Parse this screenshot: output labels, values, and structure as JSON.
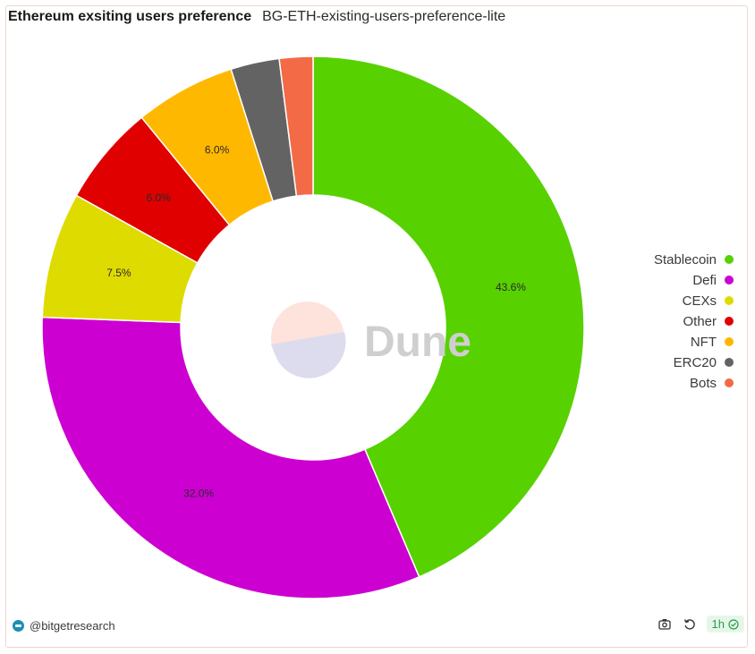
{
  "header": {
    "title": "Ethereum exsiting users preference",
    "subtitle": "BG-ETH-existing-users-preference-lite"
  },
  "chart_data": {
    "type": "pie",
    "donut": true,
    "title": "Ethereum exsiting users preference",
    "legend_position": "right",
    "series": [
      {
        "name": "Stablecoin",
        "value": 43.6,
        "label": "43.6%",
        "color": "#58d100"
      },
      {
        "name": "Defi",
        "value": 32.0,
        "label": "32.0%",
        "color": "#cc00d1"
      },
      {
        "name": "CEXs",
        "value": 7.5,
        "label": "7.5%",
        "color": "#dedb00"
      },
      {
        "name": "Other",
        "value": 6.0,
        "label": "6.0%",
        "color": "#e00000"
      },
      {
        "name": "NFT",
        "value": 6.0,
        "label": "6.0%",
        "color": "#ffb800"
      },
      {
        "name": "ERC20",
        "value": 2.9,
        "label": "",
        "color": "#636363"
      },
      {
        "name": "Bots",
        "value": 2.0,
        "label": "",
        "color": "#f36a46"
      }
    ]
  },
  "watermark": {
    "text": "Dune"
  },
  "footer": {
    "handle": "@bitgetresearch",
    "refresh_badge": "1h",
    "icons": [
      "camera-icon",
      "refresh-icon",
      "check-circle-icon"
    ]
  }
}
